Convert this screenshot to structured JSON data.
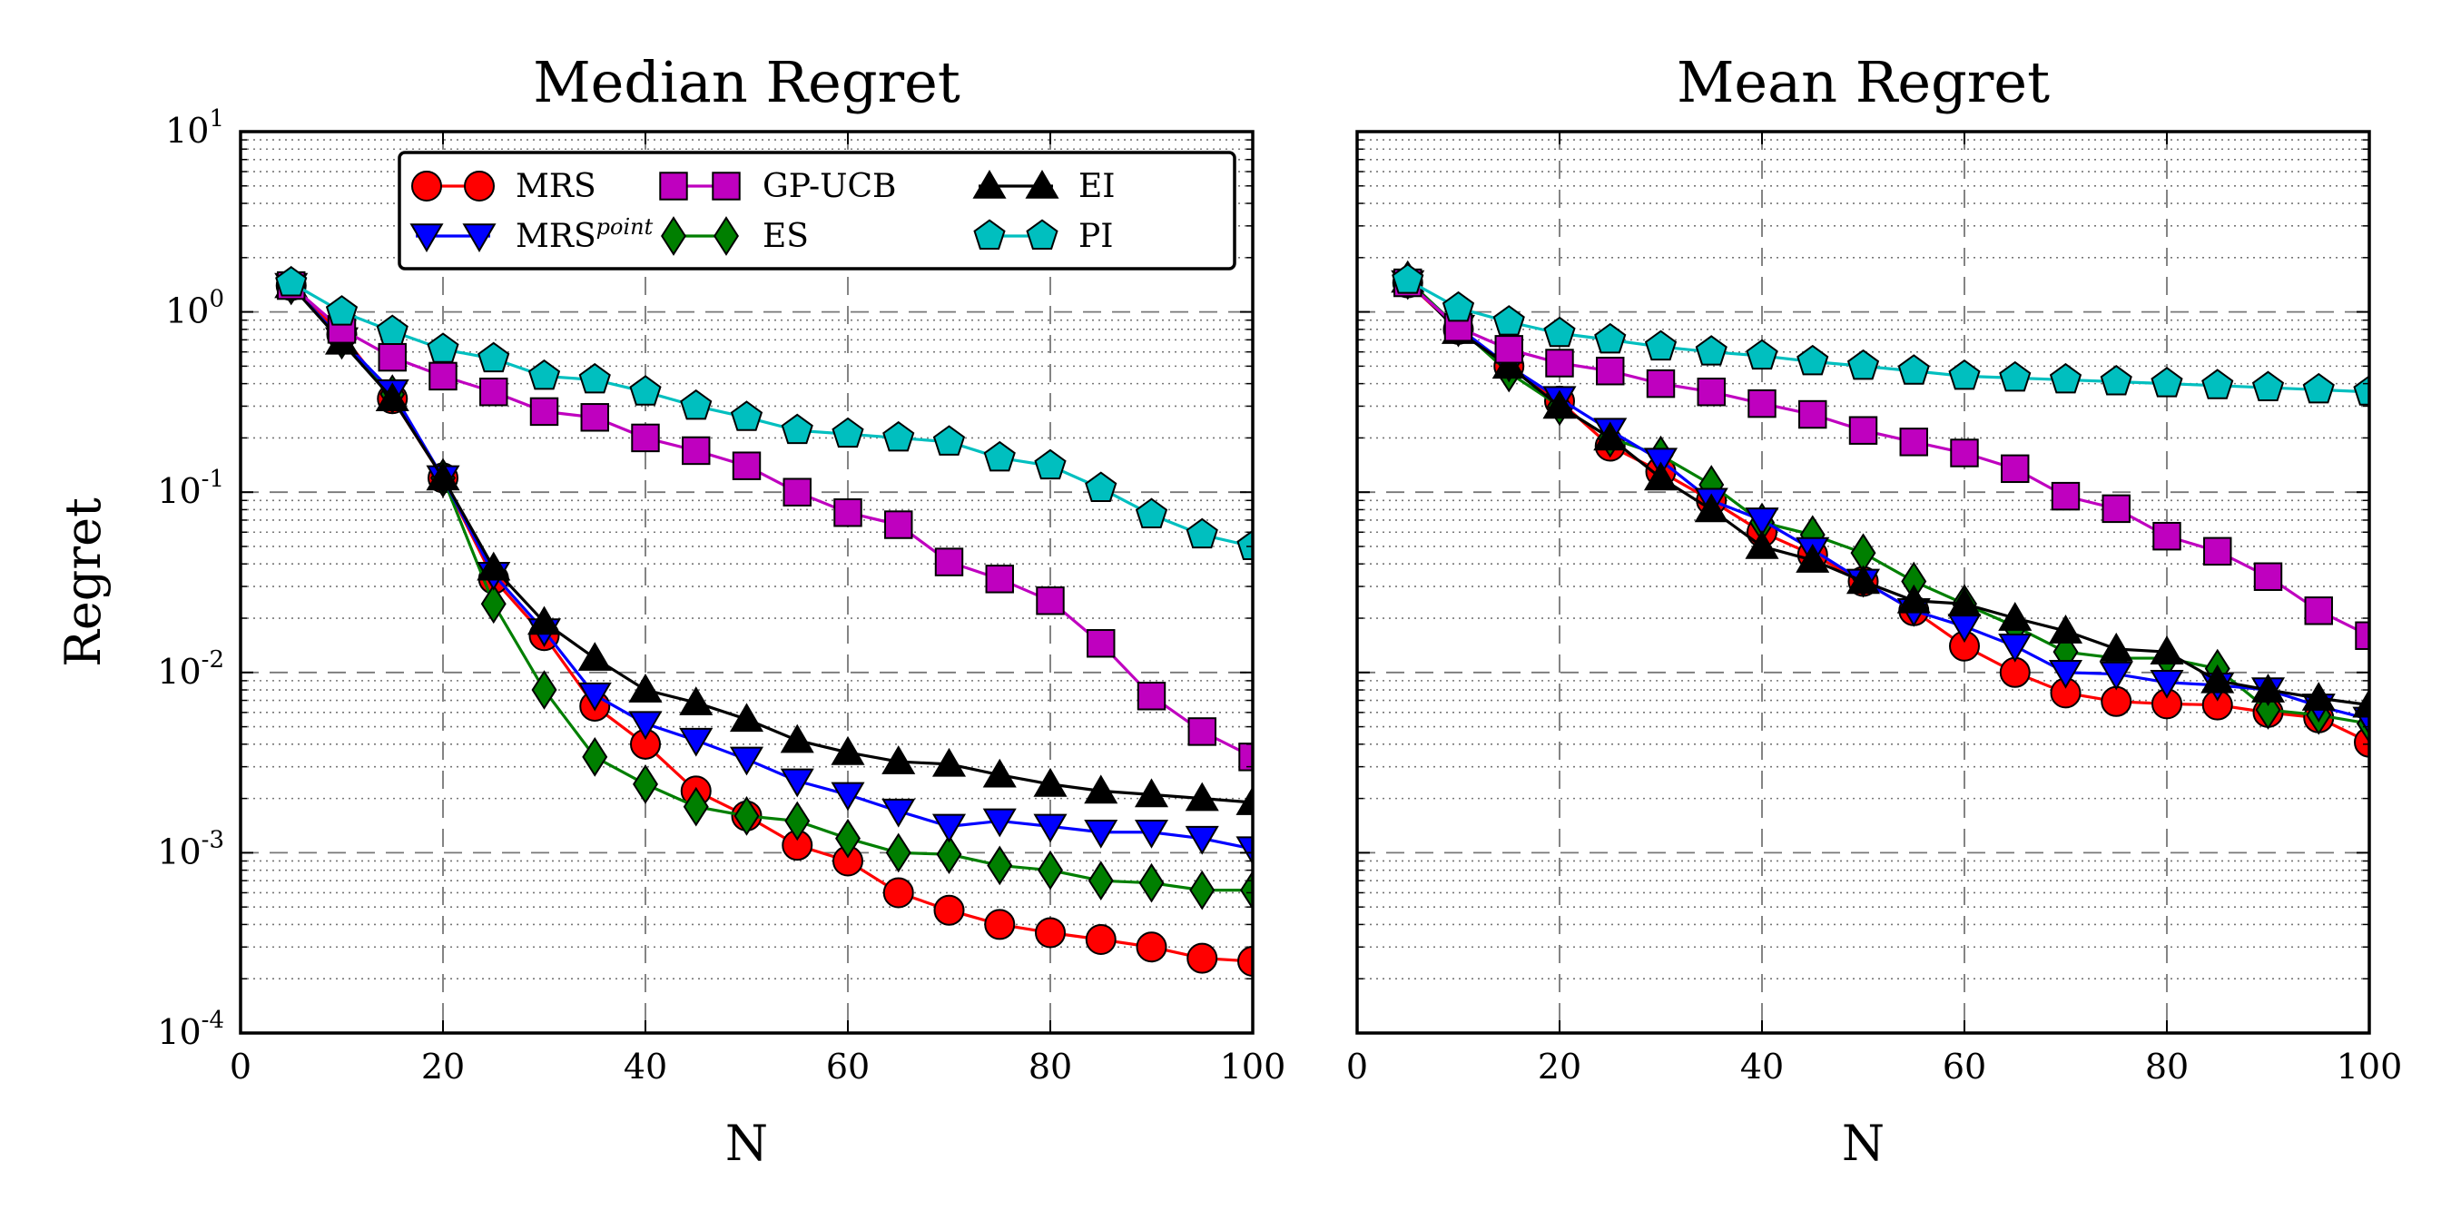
{
  "chart_data": [
    {
      "type": "line",
      "title": "Median Regret",
      "xlabel": "N",
      "ylabel": "Regret",
      "yscale": "log",
      "xlim": [
        0,
        100
      ],
      "ylim": [
        0.0001,
        10
      ],
      "xticks": [
        "0",
        "20",
        "40",
        "60",
        "80",
        "100"
      ],
      "yticks": [
        {
          "base": "10",
          "exp": "-4"
        },
        {
          "base": "10",
          "exp": "-3"
        },
        {
          "base": "10",
          "exp": "-2"
        },
        {
          "base": "10",
          "exp": "-1"
        },
        {
          "base": "10",
          "exp": "0"
        },
        {
          "base": "10",
          "exp": "1"
        }
      ],
      "grid": true,
      "legend": "top",
      "x": [
        5,
        10,
        15,
        20,
        25,
        30,
        35,
        40,
        45,
        50,
        55,
        60,
        65,
        70,
        75,
        80,
        85,
        90,
        95,
        100
      ],
      "series": [
        {
          "name": "MRS",
          "color": "#ff0000",
          "marker": "circle",
          "values": [
            1.4,
            0.75,
            0.33,
            0.12,
            0.033,
            0.016,
            0.0065,
            0.004,
            0.0022,
            0.0016,
            0.0011,
            0.0009,
            0.0006,
            0.00048,
            0.0004,
            0.00036,
            0.00033,
            0.0003,
            0.00026,
            0.00025
          ]
        },
        {
          "name": "ES",
          "color": "#007f00",
          "marker": "diamond",
          "values": [
            1.4,
            0.7,
            0.35,
            0.12,
            0.024,
            0.008,
            0.0034,
            0.0024,
            0.0018,
            0.0016,
            0.0015,
            0.0012,
            0.001,
            0.00098,
            0.00085,
            0.0008,
            0.0007,
            0.00068,
            0.00062,
            0.00062
          ]
        },
        {
          "name": "MRS",
          "name_sup": "point",
          "color": "#0000ff",
          "marker": "triangle-down",
          "values": [
            1.4,
            0.7,
            0.36,
            0.12,
            0.035,
            0.017,
            0.0075,
            0.0052,
            0.0042,
            0.0033,
            0.0025,
            0.0021,
            0.0017,
            0.0014,
            0.0015,
            0.0014,
            0.0013,
            0.0013,
            0.0012,
            0.00105
          ]
        },
        {
          "name": "EI",
          "color": "#000000",
          "marker": "triangle-up",
          "values": [
            1.4,
            0.68,
            0.33,
            0.12,
            0.038,
            0.019,
            0.012,
            0.008,
            0.0068,
            0.0055,
            0.0042,
            0.0036,
            0.0032,
            0.0031,
            0.0027,
            0.0024,
            0.0022,
            0.0021,
            0.002,
            0.0019
          ]
        },
        {
          "name": "GP-UCB",
          "color": "#bf00bf",
          "marker": "square",
          "values": [
            1.4,
            0.8,
            0.56,
            0.44,
            0.36,
            0.28,
            0.26,
            0.2,
            0.17,
            0.14,
            0.1,
            0.077,
            0.066,
            0.041,
            0.033,
            0.025,
            0.0145,
            0.0074,
            0.0047,
            0.0034
          ]
        },
        {
          "name": "PI",
          "color": "#00bfbf",
          "marker": "pentagon",
          "values": [
            1.45,
            1.0,
            0.78,
            0.62,
            0.55,
            0.44,
            0.42,
            0.36,
            0.3,
            0.26,
            0.22,
            0.21,
            0.2,
            0.19,
            0.155,
            0.14,
            0.105,
            0.075,
            0.058,
            0.05
          ]
        }
      ]
    },
    {
      "type": "line",
      "title": "Mean Regret",
      "xlabel": "N",
      "ylabel": "",
      "yscale": "log",
      "xlim": [
        0,
        100
      ],
      "ylim": [
        0.0001,
        10
      ],
      "xticks": [
        "0",
        "20",
        "40",
        "60",
        "80",
        "100"
      ],
      "grid": true,
      "x": [
        5,
        10,
        15,
        20,
        25,
        30,
        35,
        40,
        45,
        50,
        55,
        60,
        65,
        70,
        75,
        80,
        85,
        90,
        95,
        100
      ],
      "series": [
        {
          "name": "MRS",
          "color": "#ff0000",
          "marker": "circle",
          "values": [
            1.45,
            0.8,
            0.5,
            0.32,
            0.18,
            0.13,
            0.09,
            0.06,
            0.045,
            0.032,
            0.022,
            0.014,
            0.01,
            0.0077,
            0.0069,
            0.0067,
            0.0066,
            0.006,
            0.0056,
            0.0041
          ]
        },
        {
          "name": "ES",
          "color": "#007f00",
          "marker": "diamond",
          "values": [
            1.5,
            0.82,
            0.46,
            0.3,
            0.2,
            0.16,
            0.11,
            0.068,
            0.058,
            0.046,
            0.032,
            0.024,
            0.018,
            0.013,
            0.012,
            0.012,
            0.0105,
            0.0062,
            0.0058,
            0.0052
          ]
        },
        {
          "name": "MRS",
          "name_sup": "point",
          "color": "#0000ff",
          "marker": "triangle-down",
          "values": [
            1.45,
            0.82,
            0.5,
            0.33,
            0.22,
            0.15,
            0.09,
            0.07,
            0.048,
            0.032,
            0.022,
            0.018,
            0.014,
            0.01,
            0.0098,
            0.0088,
            0.0085,
            0.008,
            0.0065,
            0.0055
          ]
        },
        {
          "name": "EI",
          "color": "#000000",
          "marker": "triangle-up",
          "values": [
            1.5,
            0.78,
            0.5,
            0.3,
            0.2,
            0.12,
            0.08,
            0.05,
            0.042,
            0.032,
            0.025,
            0.024,
            0.02,
            0.017,
            0.0135,
            0.013,
            0.009,
            0.008,
            0.0072,
            0.0066
          ]
        },
        {
          "name": "GP-UCB",
          "color": "#bf00bf",
          "marker": "square",
          "values": [
            1.45,
            0.82,
            0.62,
            0.52,
            0.47,
            0.4,
            0.36,
            0.31,
            0.27,
            0.22,
            0.19,
            0.165,
            0.135,
            0.095,
            0.081,
            0.057,
            0.047,
            0.034,
            0.022,
            0.016
          ]
        },
        {
          "name": "PI",
          "color": "#00bfbf",
          "marker": "pentagon",
          "values": [
            1.5,
            1.05,
            0.88,
            0.76,
            0.7,
            0.64,
            0.6,
            0.57,
            0.53,
            0.5,
            0.47,
            0.44,
            0.43,
            0.42,
            0.41,
            0.4,
            0.39,
            0.38,
            0.37,
            0.36
          ]
        }
      ]
    }
  ]
}
